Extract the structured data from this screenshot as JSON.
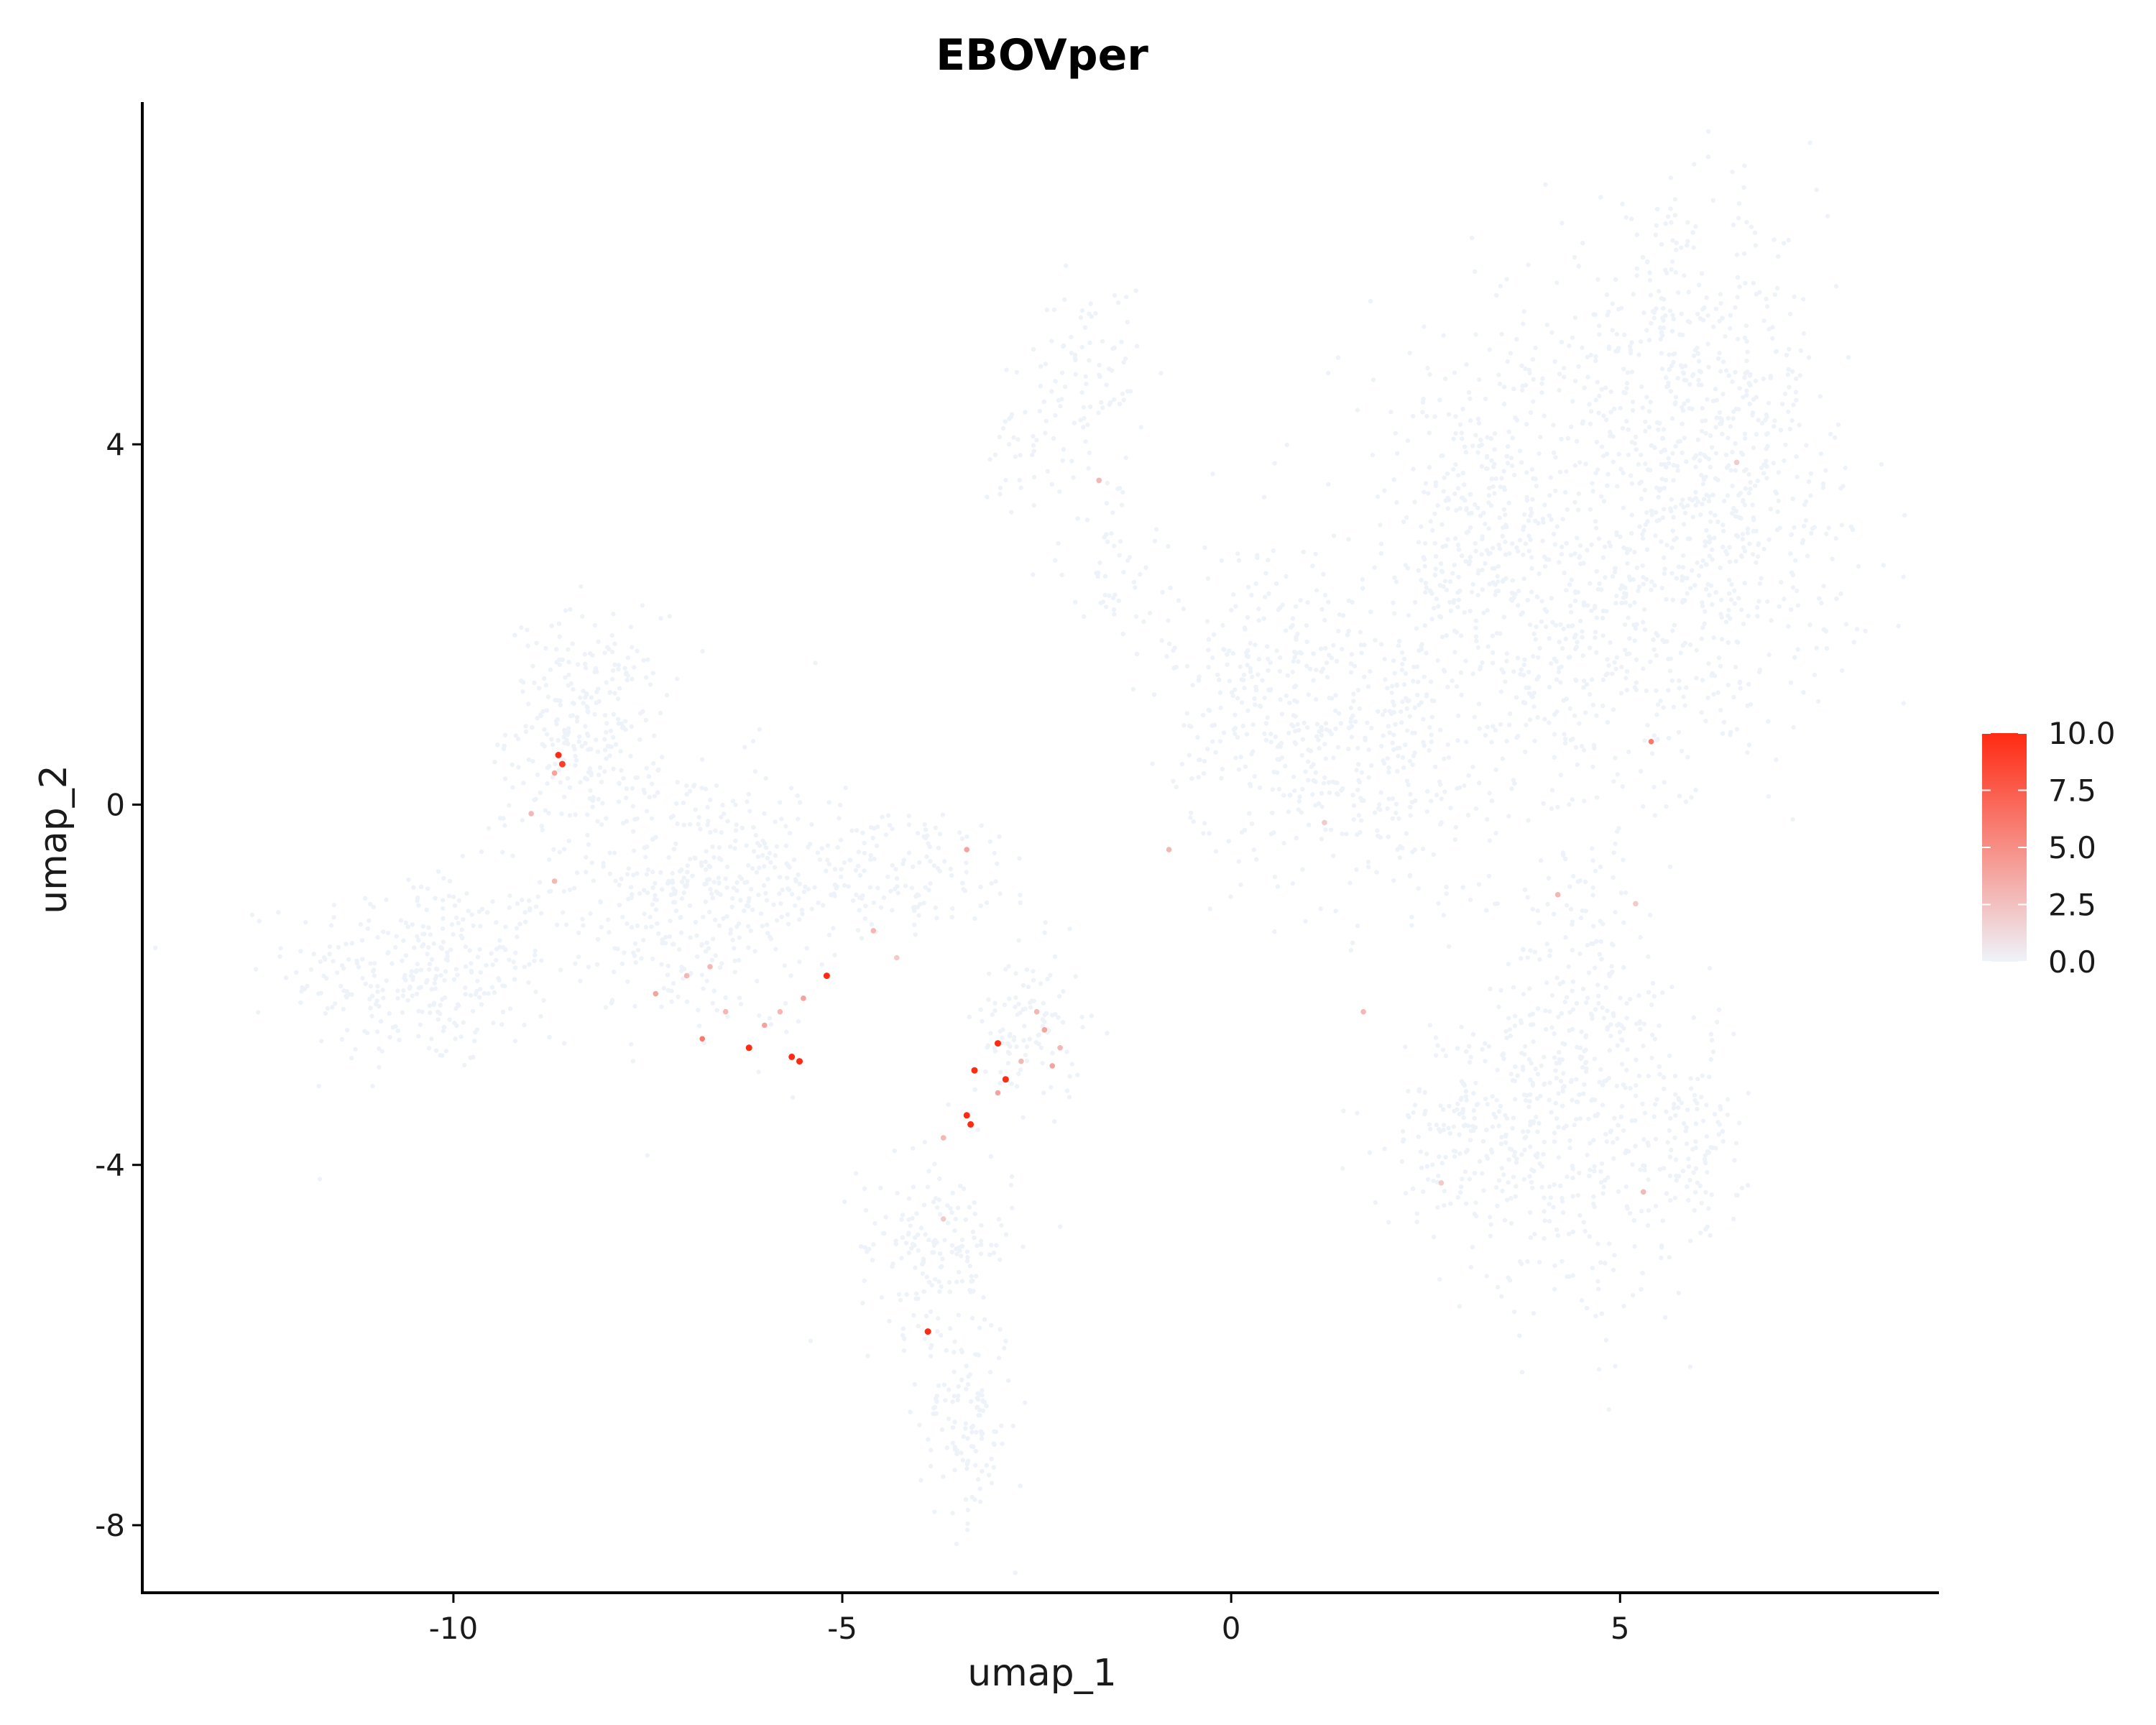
{
  "chart_data": {
    "type": "scatter",
    "title": "EBOVper",
    "xlabel": "umap_1",
    "ylabel": "umap_2",
    "xlim": [
      -14.0,
      9.1
    ],
    "ylim": [
      -8.75,
      7.8
    ],
    "x_ticks": [
      -10,
      -5,
      0,
      5
    ],
    "x_tick_labels": [
      "-10",
      "-5",
      "0",
      "5"
    ],
    "y_ticks": [
      -8,
      -4,
      0,
      4
    ],
    "y_tick_labels": [
      "-8",
      "-4",
      "0",
      "4"
    ],
    "grid": false,
    "legend": {
      "placement": "right",
      "type": "colorbar",
      "range": [
        0,
        10
      ],
      "ticks": [
        0,
        2.5,
        5,
        7.5,
        10
      ],
      "tick_labels": [
        "0.0",
        "2.5",
        "5.0",
        "7.5",
        "10.0"
      ],
      "low_color": "#EEF3FA",
      "high_color": "#FF2A12"
    },
    "background_point_color": "#EEF3FA",
    "background_point_value": 0,
    "clusters": [
      {
        "center": [
          -10.4,
          -1.85
        ],
        "spread": [
          0.85,
          0.55
        ],
        "count": 320
      },
      {
        "center": [
          -8.3,
          0.9
        ],
        "spread": [
          0.5,
          0.6
        ],
        "count": 260
      },
      {
        "center": [
          -7.0,
          -1.0
        ],
        "spread": [
          1.0,
          0.75
        ],
        "count": 420
      },
      {
        "center": [
          -4.5,
          -0.7
        ],
        "spread": [
          1.1,
          0.35
        ],
        "count": 180
      },
      {
        "center": [
          -3.8,
          -4.9
        ],
        "spread": [
          0.5,
          0.5
        ],
        "count": 170
      },
      {
        "center": [
          -3.4,
          -6.8
        ],
        "spread": [
          0.3,
          0.6
        ],
        "count": 130
      },
      {
        "center": [
          -2.6,
          -2.5
        ],
        "spread": [
          0.35,
          0.45
        ],
        "count": 110
      },
      {
        "center": [
          -1.8,
          4.8
        ],
        "spread": [
          0.35,
          0.5
        ],
        "count": 80
      },
      {
        "center": [
          -2.7,
          4.1
        ],
        "spread": [
          0.25,
          0.4
        ],
        "count": 40
      },
      {
        "center": [
          -1.5,
          2.7
        ],
        "spread": [
          0.35,
          0.6
        ],
        "count": 60
      },
      {
        "center": [
          0.5,
          1.2
        ],
        "spread": [
          0.65,
          0.9
        ],
        "count": 300
      },
      {
        "center": [
          2.0,
          0.5
        ],
        "spread": [
          0.7,
          0.8
        ],
        "count": 260
      },
      {
        "center": [
          3.2,
          3.2
        ],
        "spread": [
          0.9,
          1.0
        ],
        "count": 380
      },
      {
        "center": [
          5.8,
          4.8
        ],
        "spread": [
          0.9,
          0.9
        ],
        "count": 430
      },
      {
        "center": [
          6.3,
          3.0
        ],
        "spread": [
          0.9,
          0.9
        ],
        "count": 380
      },
      {
        "center": [
          4.6,
          1.6
        ],
        "spread": [
          1.0,
          0.9
        ],
        "count": 360
      },
      {
        "center": [
          4.5,
          -3.0
        ],
        "spread": [
          0.6,
          1.3
        ],
        "count": 420
      },
      {
        "center": [
          3.2,
          -3.6
        ],
        "spread": [
          0.6,
          0.6
        ],
        "count": 220
      },
      {
        "center": [
          5.9,
          -3.8
        ],
        "spread": [
          0.35,
          0.6
        ],
        "count": 120
      }
    ],
    "highlighted_points": [
      {
        "x": -8.65,
        "y": 0.55,
        "value": 10
      },
      {
        "x": -8.6,
        "y": 0.45,
        "value": 9
      },
      {
        "x": -8.7,
        "y": 0.35,
        "value": 4
      },
      {
        "x": -9.0,
        "y": -0.1,
        "value": 3
      },
      {
        "x": -8.7,
        "y": -0.85,
        "value": 3
      },
      {
        "x": -5.2,
        "y": -1.9,
        "value": 10
      },
      {
        "x": -5.5,
        "y": -2.15,
        "value": 4
      },
      {
        "x": -5.8,
        "y": -2.3,
        "value": 3
      },
      {
        "x": -6.0,
        "y": -2.45,
        "value": 4
      },
      {
        "x": -6.2,
        "y": -2.7,
        "value": 10
      },
      {
        "x": -5.65,
        "y": -2.8,
        "value": 10
      },
      {
        "x": -5.55,
        "y": -2.85,
        "value": 10
      },
      {
        "x": -6.8,
        "y": -2.6,
        "value": 6
      },
      {
        "x": -7.4,
        "y": -2.1,
        "value": 4
      },
      {
        "x": -6.5,
        "y": -2.3,
        "value": 3
      },
      {
        "x": -7.0,
        "y": -1.9,
        "value": 3
      },
      {
        "x": -6.7,
        "y": -1.8,
        "value": 3
      },
      {
        "x": -4.6,
        "y": -1.4,
        "value": 3
      },
      {
        "x": -4.3,
        "y": -1.7,
        "value": 2
      },
      {
        "x": -3.4,
        "y": -0.5,
        "value": 4
      },
      {
        "x": -3.0,
        "y": -2.65,
        "value": 10
      },
      {
        "x": -3.3,
        "y": -2.95,
        "value": 10
      },
      {
        "x": -2.9,
        "y": -3.05,
        "value": 10
      },
      {
        "x": -3.0,
        "y": -3.2,
        "value": 4
      },
      {
        "x": -3.4,
        "y": -3.45,
        "value": 10
      },
      {
        "x": -3.35,
        "y": -3.55,
        "value": 10
      },
      {
        "x": -2.4,
        "y": -2.5,
        "value": 4
      },
      {
        "x": -2.5,
        "y": -2.3,
        "value": 3
      },
      {
        "x": -2.3,
        "y": -2.9,
        "value": 4
      },
      {
        "x": -2.7,
        "y": -2.85,
        "value": 3
      },
      {
        "x": -2.2,
        "y": -2.7,
        "value": 3
      },
      {
        "x": -3.9,
        "y": -5.85,
        "value": 10
      },
      {
        "x": -3.7,
        "y": -3.7,
        "value": 3
      },
      {
        "x": -3.7,
        "y": -4.6,
        "value": 2
      },
      {
        "x": -0.8,
        "y": -0.5,
        "value": 3
      },
      {
        "x": 1.2,
        "y": -0.2,
        "value": 2
      },
      {
        "x": 1.7,
        "y": -2.3,
        "value": 3
      },
      {
        "x": 4.2,
        "y": -1.0,
        "value": 3
      },
      {
        "x": 5.4,
        "y": 0.7,
        "value": 6
      },
      {
        "x": 5.2,
        "y": -1.1,
        "value": 2
      },
      {
        "x": 6.5,
        "y": 3.8,
        "value": 2
      },
      {
        "x": 5.3,
        "y": -4.3,
        "value": 3
      },
      {
        "x": -1.7,
        "y": 3.6,
        "value": 3
      },
      {
        "x": 2.7,
        "y": -4.2,
        "value": 2
      }
    ]
  }
}
